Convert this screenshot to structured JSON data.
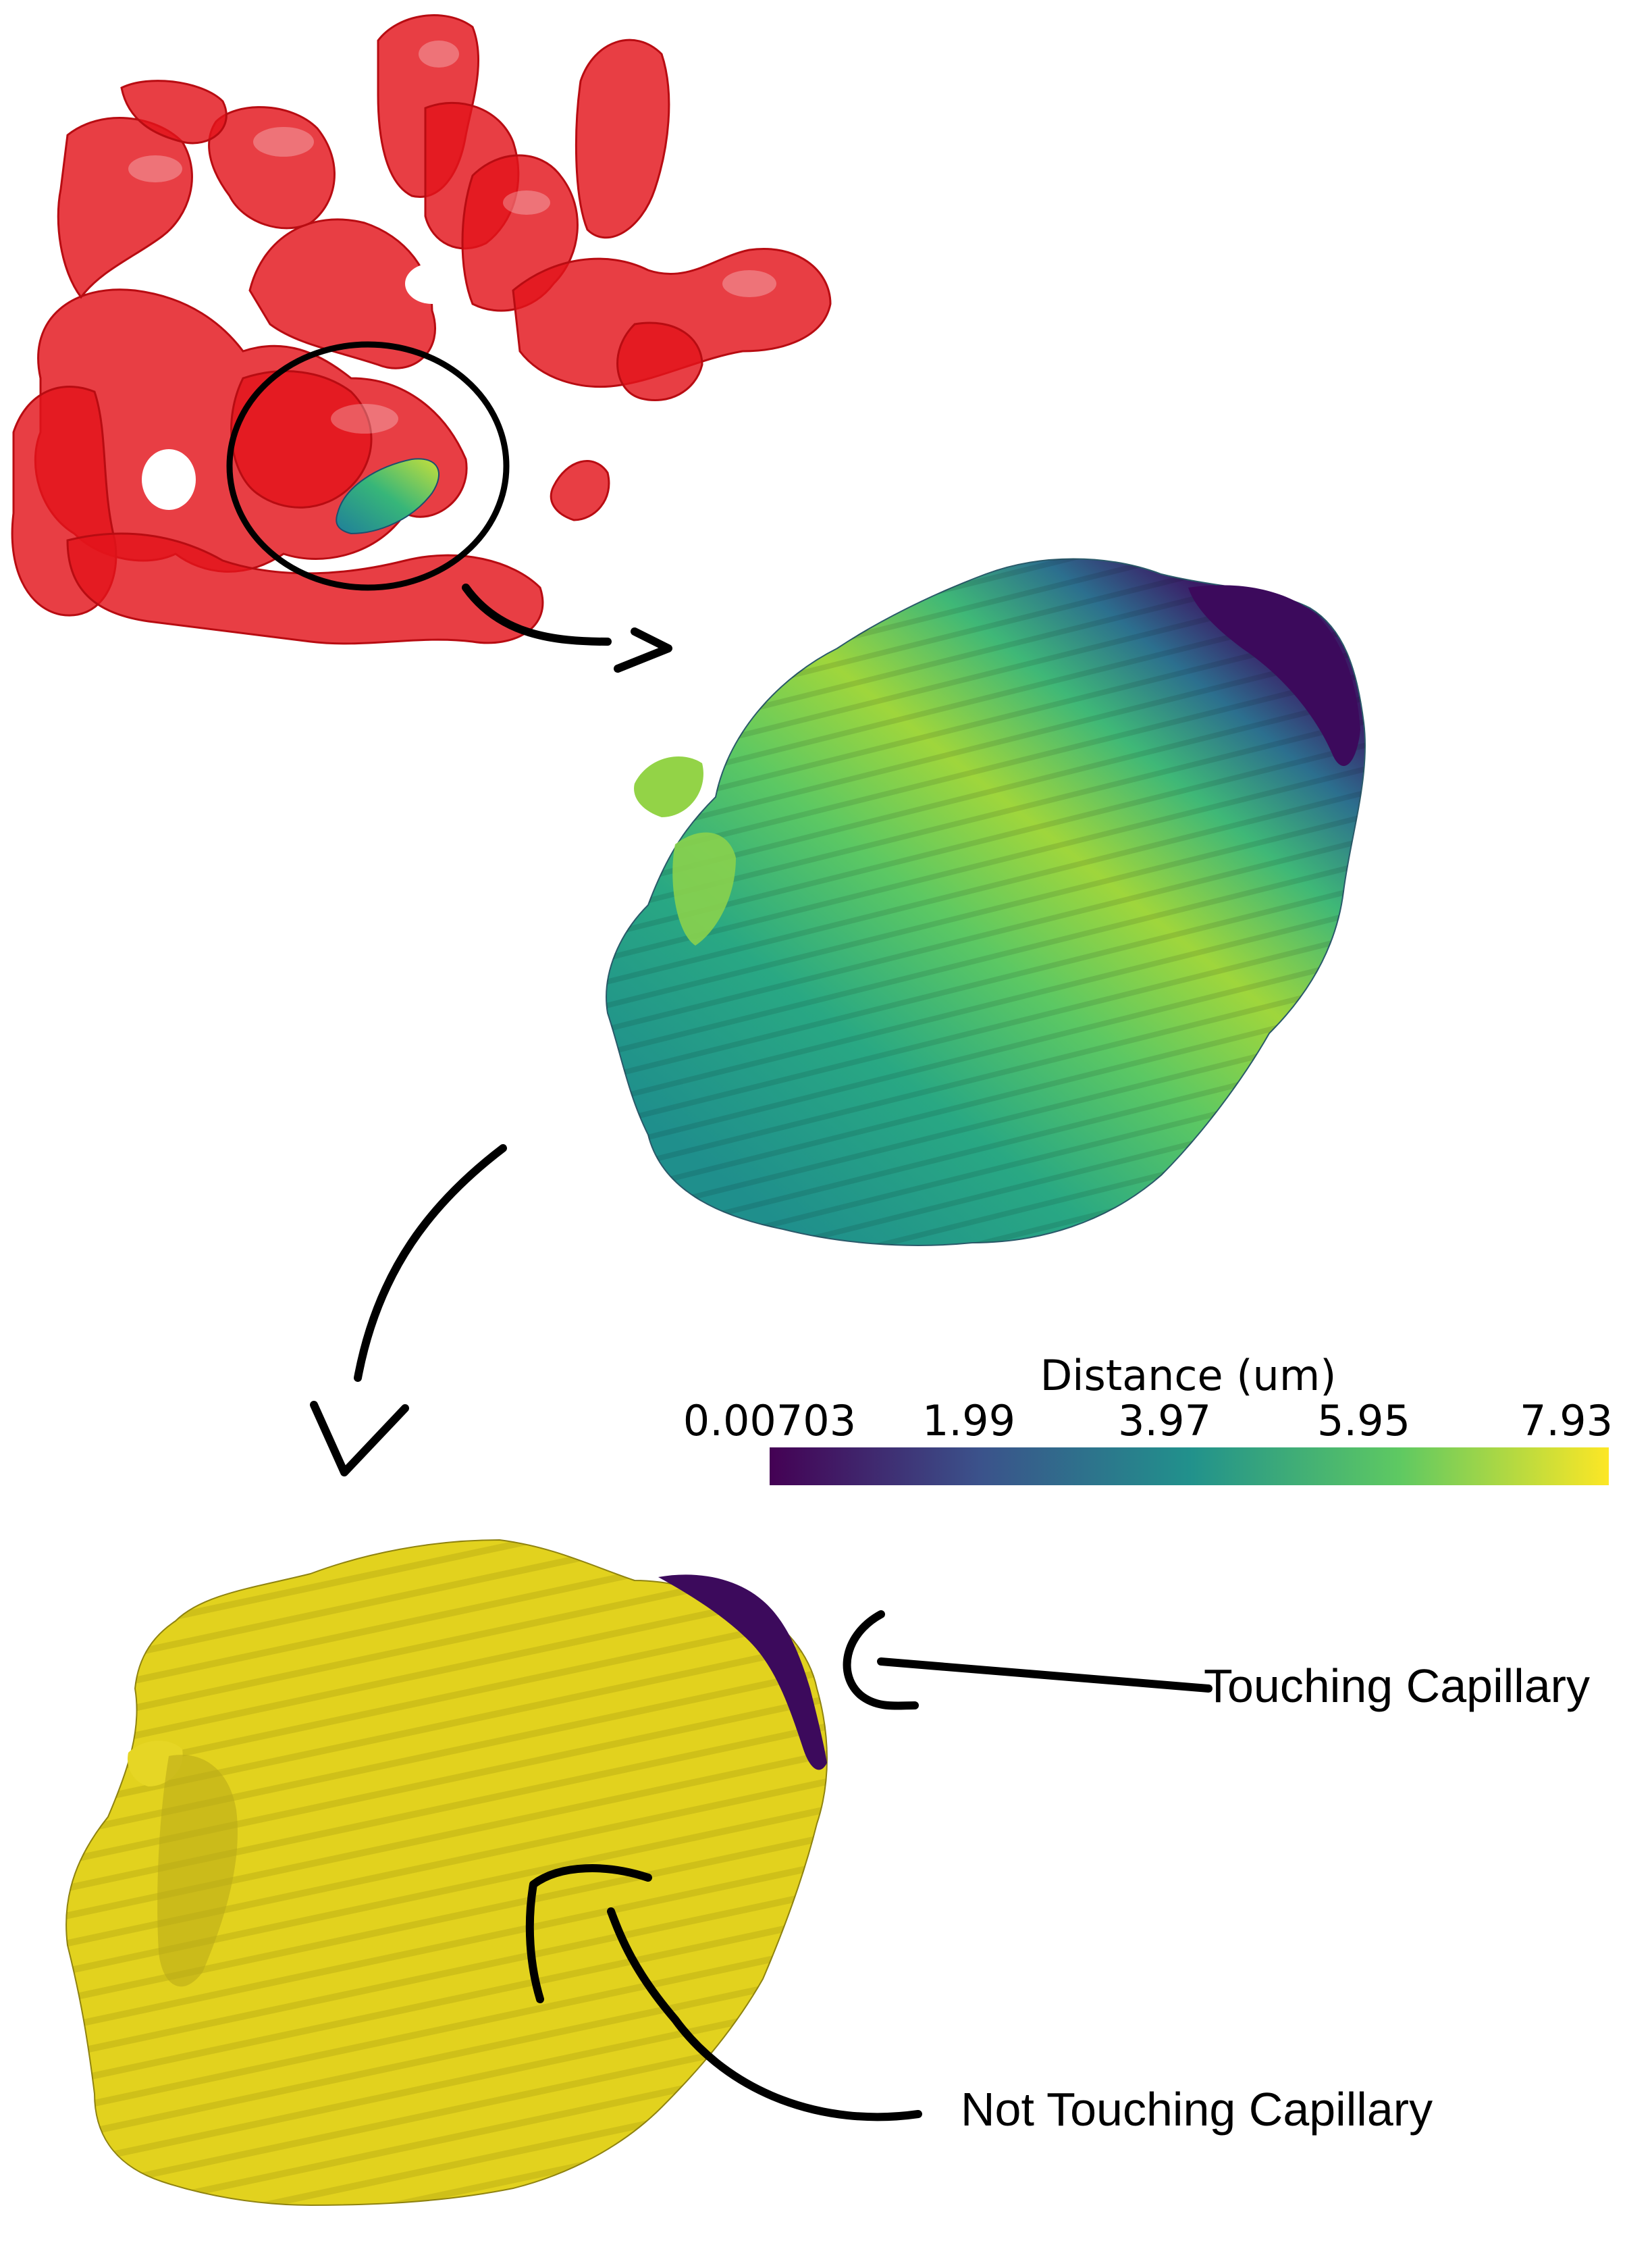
{
  "colorbar": {
    "title": "Distance (um)",
    "ticks": [
      "0.00703",
      "1.99",
      "3.97",
      "5.95",
      "7.93"
    ],
    "colormap": [
      "#440154",
      "#3b528b",
      "#21918c",
      "#5ec962",
      "#fde725"
    ]
  },
  "annotations": {
    "touching": "Touching Capillary",
    "not_touching": "Not Touching Capillary"
  },
  "colors": {
    "vessel_red": "#e3141b",
    "cell_yellow": "#e2d21e",
    "touching_purple": "#3c0a5c"
  }
}
